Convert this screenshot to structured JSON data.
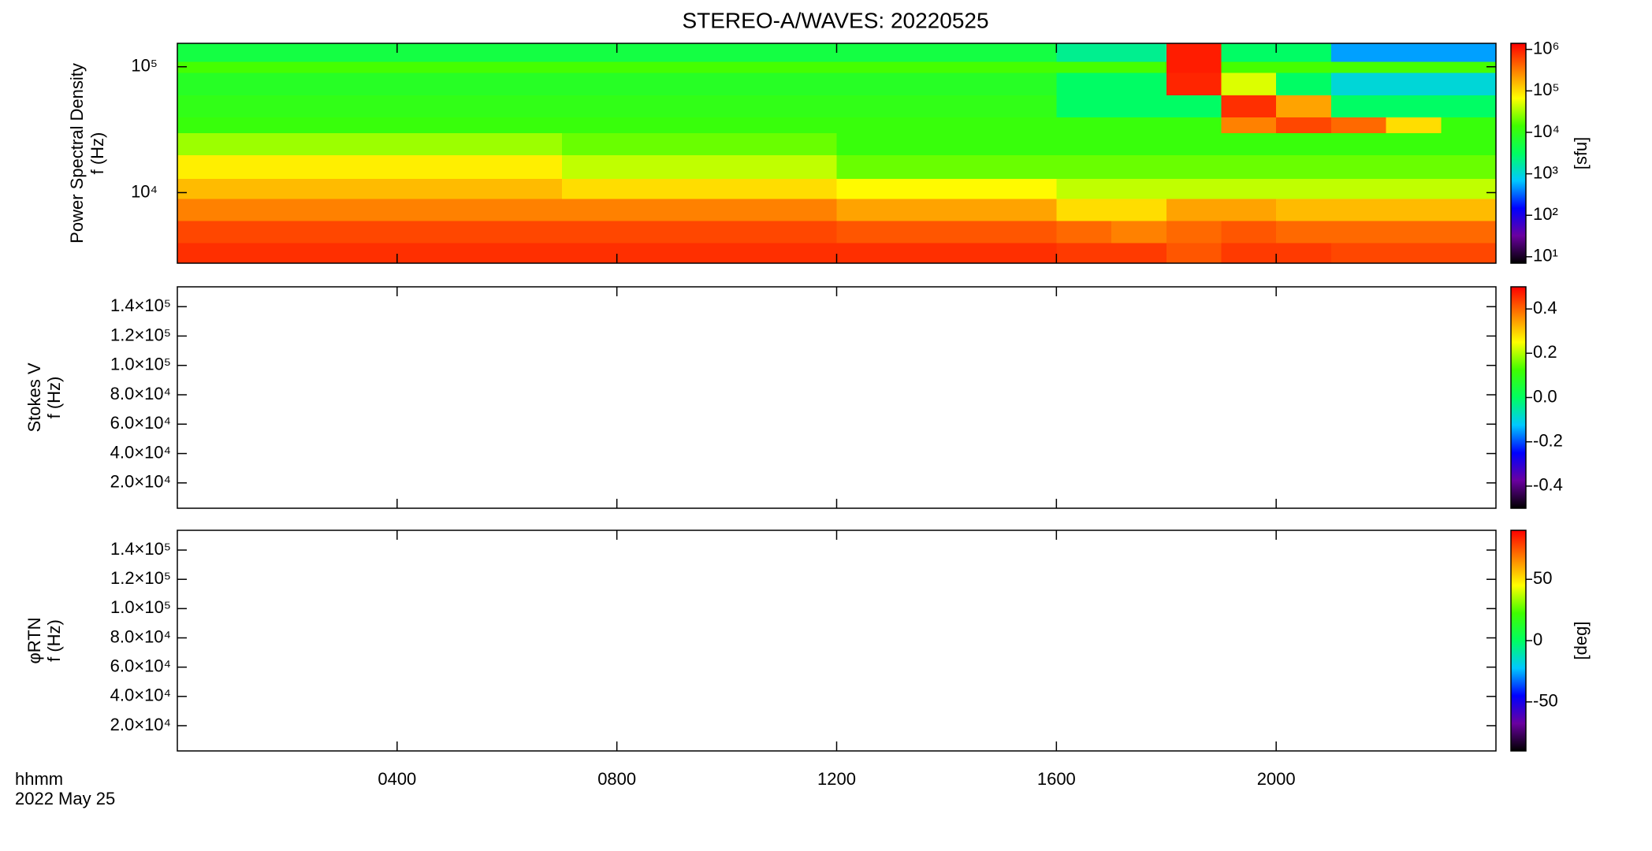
{
  "chart_data": [
    {
      "type": "heatmap",
      "title": "STEREO-A/WAVES: 20220525",
      "ylabel": [
        "Power Spectral Density",
        "f (Hz)"
      ],
      "xlim": [
        0,
        24
      ],
      "ylim": [
        2750,
        153500
      ],
      "ylog": true,
      "yticks": [
        {
          "value": 10000,
          "label": "10⁴"
        },
        {
          "value": 100000,
          "label": "10⁵"
        }
      ],
      "xbins": [
        0,
        1,
        2,
        3,
        4,
        5,
        6,
        7,
        8,
        9,
        10,
        11,
        12,
        13,
        14,
        15,
        16,
        17,
        18,
        19,
        20,
        21,
        22,
        23,
        24
      ],
      "ybins": [
        2750,
        4000,
        6000,
        9000,
        13000,
        20000,
        30000,
        40000,
        60000,
        90000,
        110000,
        153500
      ],
      "z": [
        [
          800000,
          800000,
          800000,
          800000,
          800000,
          800000,
          800000,
          800000,
          800000,
          800000,
          800000,
          800000,
          800000,
          800000,
          800000,
          800000,
          700000,
          700000,
          500000,
          700000,
          700000,
          600000,
          600000,
          600000
        ],
        [
          600000,
          600000,
          600000,
          600000,
          600000,
          600000,
          600000,
          600000,
          600000,
          600000,
          600000,
          600000,
          500000,
          500000,
          500000,
          500000,
          400000,
          300000,
          400000,
          500000,
          400000,
          400000,
          400000,
          400000
        ],
        [
          300000,
          300000,
          300000,
          300000,
          300000,
          300000,
          300000,
          300000,
          300000,
          300000,
          300000,
          300000,
          200000,
          200000,
          200000,
          200000,
          100000,
          100000,
          200000,
          200000,
          150000,
          150000,
          150000,
          150000
        ],
        [
          150000,
          150000,
          150000,
          150000,
          150000,
          150000,
          150000,
          100000,
          100000,
          100000,
          100000,
          100000,
          70000,
          70000,
          70000,
          70000,
          40000,
          40000,
          40000,
          40000,
          40000,
          40000,
          40000,
          40000
        ],
        [
          80000,
          80000,
          80000,
          80000,
          80000,
          80000,
          80000,
          40000,
          40000,
          40000,
          40000,
          40000,
          20000,
          20000,
          20000,
          20000,
          20000,
          20000,
          20000,
          20000,
          20000,
          20000,
          20000,
          20000
        ],
        [
          30000,
          30000,
          30000,
          30000,
          30000,
          30000,
          30000,
          20000,
          20000,
          20000,
          20000,
          20000,
          12000,
          12000,
          12000,
          12000,
          12000,
          12000,
          12000,
          12000,
          12000,
          12000,
          12000,
          12000
        ],
        [
          12000,
          12000,
          12000,
          12000,
          12000,
          12000,
          12000,
          12000,
          12000,
          12000,
          12000,
          12000,
          12000,
          12000,
          12000,
          12000,
          12000,
          12000,
          12000,
          300000,
          600000,
          400000,
          100000,
          12000
        ],
        [
          10000,
          10000,
          10000,
          10000,
          10000,
          10000,
          10000,
          10000,
          10000,
          10000,
          10000,
          10000,
          10000,
          10000,
          10000,
          10000,
          3000,
          3000,
          3000,
          800000,
          200000,
          3000,
          3000,
          3000
        ],
        [
          8000,
          8000,
          8000,
          8000,
          8000,
          8000,
          8000,
          8000,
          8000,
          8000,
          8000,
          8000,
          8000,
          8000,
          8000,
          8000,
          3000,
          3000,
          900000,
          50000,
          3000,
          1000,
          1000,
          1000
        ],
        [
          15000,
          15000,
          15000,
          15000,
          15000,
          15000,
          15000,
          15000,
          15000,
          15000,
          15000,
          15000,
          15000,
          15000,
          15000,
          15000,
          15000,
          15000,
          1000000,
          15000,
          15000,
          15000,
          15000,
          15000
        ],
        [
          5000,
          5000,
          5000,
          5000,
          5000,
          5000,
          5000,
          5000,
          5000,
          5000,
          5000,
          5000,
          5000,
          5000,
          5000,
          5000,
          2000,
          2000,
          1000000,
          3000,
          3000,
          500,
          500,
          500
        ]
      ],
      "clim": [
        7,
        1400000
      ],
      "clog": true,
      "cticks": [
        {
          "value": 10,
          "label": "10¹"
        },
        {
          "value": 100,
          "label": "10²"
        },
        {
          "value": 1000,
          "label": "10³"
        },
        {
          "value": 10000,
          "label": "10⁴"
        },
        {
          "value": 100000,
          "label": "10⁵"
        },
        {
          "value": 1000000,
          "label": "10⁶"
        }
      ],
      "clabel": "[sfu]",
      "colormap": [
        "#000000",
        "#6a00a0",
        "#0000ff",
        "#00c8ff",
        "#00ff60",
        "#40ff00",
        "#ffff00",
        "#ff8000",
        "#ff0000"
      ]
    },
    {
      "type": "heatmap",
      "ylabel": [
        "Stokes V",
        "f (Hz)"
      ],
      "xlim": [
        0,
        24
      ],
      "ylim": [
        2750,
        153500
      ],
      "yticks": [
        {
          "value": 20000,
          "label": "2.0×10⁴"
        },
        {
          "value": 40000,
          "label": "4.0×10⁴"
        },
        {
          "value": 60000,
          "label": "6.0×10⁴"
        },
        {
          "value": 80000,
          "label": "8.0×10⁴"
        },
        {
          "value": 100000,
          "label": "1.0×10⁵"
        },
        {
          "value": 120000,
          "label": "1.2×10⁵"
        },
        {
          "value": 140000,
          "label": "1.4×10⁵"
        }
      ],
      "clim": [
        -0.5,
        0.5
      ],
      "cticks": [
        -0.4,
        -0.2,
        {
          "value": 0,
          "label": "0.0"
        },
        0.2,
        0.4
      ],
      "colormap": [
        "#000000",
        "#6a00a0",
        "#0000ff",
        "#00c8ff",
        "#00ff60",
        "#40ff00",
        "#ffff00",
        "#ff8000",
        "#ff0000"
      ]
    },
    {
      "type": "heatmap",
      "ylabel": [
        "φRTN",
        "f (Hz)"
      ],
      "xlim": [
        0,
        24
      ],
      "ylim": [
        2750,
        153500
      ],
      "yticks": [
        {
          "value": 20000,
          "label": "2.0×10⁴"
        },
        {
          "value": 40000,
          "label": "4.0×10⁴"
        },
        {
          "value": 60000,
          "label": "6.0×10⁴"
        },
        {
          "value": 80000,
          "label": "8.0×10⁴"
        },
        {
          "value": 100000,
          "label": "1.0×10⁵"
        },
        {
          "value": 120000,
          "label": "1.2×10⁵"
        },
        {
          "value": 140000,
          "label": "1.4×10⁵"
        }
      ],
      "xticks": [
        {
          "value": 4,
          "label": "0400"
        },
        {
          "value": 8,
          "label": "0800"
        },
        {
          "value": 12,
          "label": "1200"
        },
        {
          "value": 16,
          "label": "1600"
        },
        {
          "value": 20,
          "label": "2000"
        }
      ],
      "xlabel": "hhmm",
      "date_label": "2022 May 25",
      "clim": [
        -90,
        90
      ],
      "cticks": [
        -50,
        0,
        50
      ],
      "clabel": "[deg]",
      "colormap": [
        "#000000",
        "#6a00a0",
        "#0000ff",
        "#00c8ff",
        "#00ff60",
        "#40ff00",
        "#ffff00",
        "#ff8000",
        "#ff0000"
      ]
    }
  ]
}
